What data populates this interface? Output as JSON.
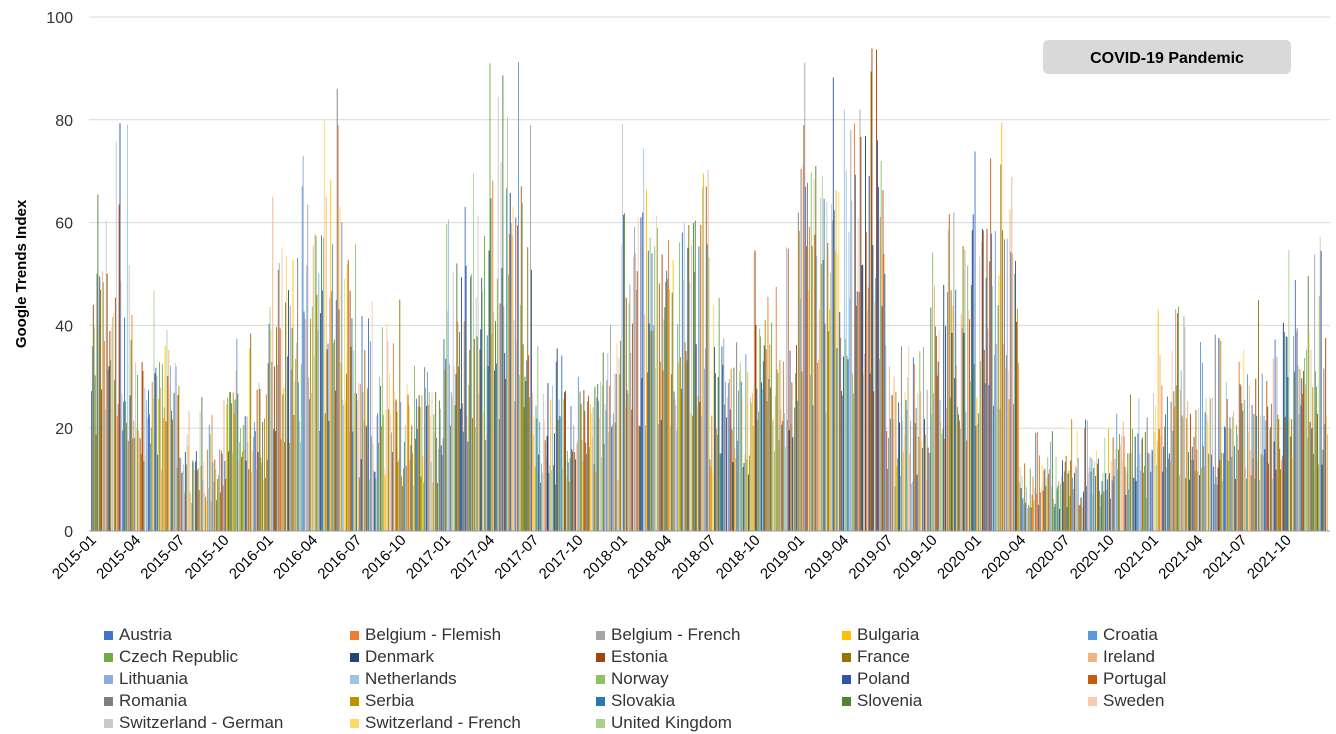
{
  "chart_data": {
    "type": "bar",
    "ylabel": "Google Trends Index",
    "ylim": [
      0,
      100
    ],
    "yticks": [
      0,
      20,
      40,
      60,
      80,
      100
    ],
    "grid": true,
    "legend_position": "bottom",
    "annotation": "COVID-19 Pandemic",
    "xtick_labels": [
      "2015-01",
      "2015-04",
      "2015-07",
      "2015-10",
      "2016-01",
      "2016-04",
      "2016-07",
      "2016-10",
      "2017-01",
      "2017-04",
      "2017-07",
      "2017-10",
      "2018-01",
      "2018-04",
      "2018-07",
      "2018-10",
      "2019-01",
      "2019-04",
      "2019-07",
      "2019-10",
      "2020-01",
      "2020-04",
      "2020-07",
      "2020-10",
      "2021-01",
      "2021-04",
      "2021-07",
      "2021-10"
    ],
    "periods": 28,
    "envelope_peak": [
      82,
      52,
      27,
      45,
      78,
      88,
      48,
      40,
      75,
      92,
      38,
      42,
      85,
      80,
      48,
      60,
      92,
      100,
      38,
      62,
      84,
      20,
      22,
      28,
      44,
      40,
      50,
      60
    ],
    "envelope_body": [
      48,
      30,
      15,
      27,
      48,
      55,
      28,
      25,
      48,
      62,
      25,
      28,
      58,
      55,
      30,
      38,
      65,
      75,
      25,
      45,
      55,
      12,
      13,
      18,
      26,
      24,
      28,
      36
    ],
    "series": [
      {
        "name": "Austria",
        "color": "#4472C4"
      },
      {
        "name": "Belgium - Flemish",
        "color": "#ED7D31"
      },
      {
        "name": "Belgium - French",
        "color": "#A5A5A5"
      },
      {
        "name": "Bulgaria",
        "color": "#FFC000"
      },
      {
        "name": "Croatia",
        "color": "#5B9BD5"
      },
      {
        "name": "Czech Republic",
        "color": "#70AD47"
      },
      {
        "name": "Denmark",
        "color": "#264478"
      },
      {
        "name": "Estonia",
        "color": "#9E480E"
      },
      {
        "name": "France",
        "color": "#997300"
      },
      {
        "name": "Ireland",
        "color": "#F4B183"
      },
      {
        "name": "Lithuania",
        "color": "#8FAADC"
      },
      {
        "name": "Netherlands",
        "color": "#9DC3E6"
      },
      {
        "name": "Norway",
        "color": "#8CC168"
      },
      {
        "name": "Poland",
        "color": "#2F55A4"
      },
      {
        "name": "Portugal",
        "color": "#C55A11"
      },
      {
        "name": "Romania",
        "color": "#7F7F7F"
      },
      {
        "name": "Serbia",
        "color": "#BF9000"
      },
      {
        "name": "Slovakia",
        "color": "#2E75B6"
      },
      {
        "name": "Slovenia",
        "color": "#548235"
      },
      {
        "name": "Sweden",
        "color": "#F8CBAD"
      },
      {
        "name": "Switzerland - German",
        "color": "#C9C9C9"
      },
      {
        "name": "Switzerland - French",
        "color": "#FFD966"
      },
      {
        "name": "United Kingdom",
        "color": "#A9D18E"
      }
    ]
  }
}
